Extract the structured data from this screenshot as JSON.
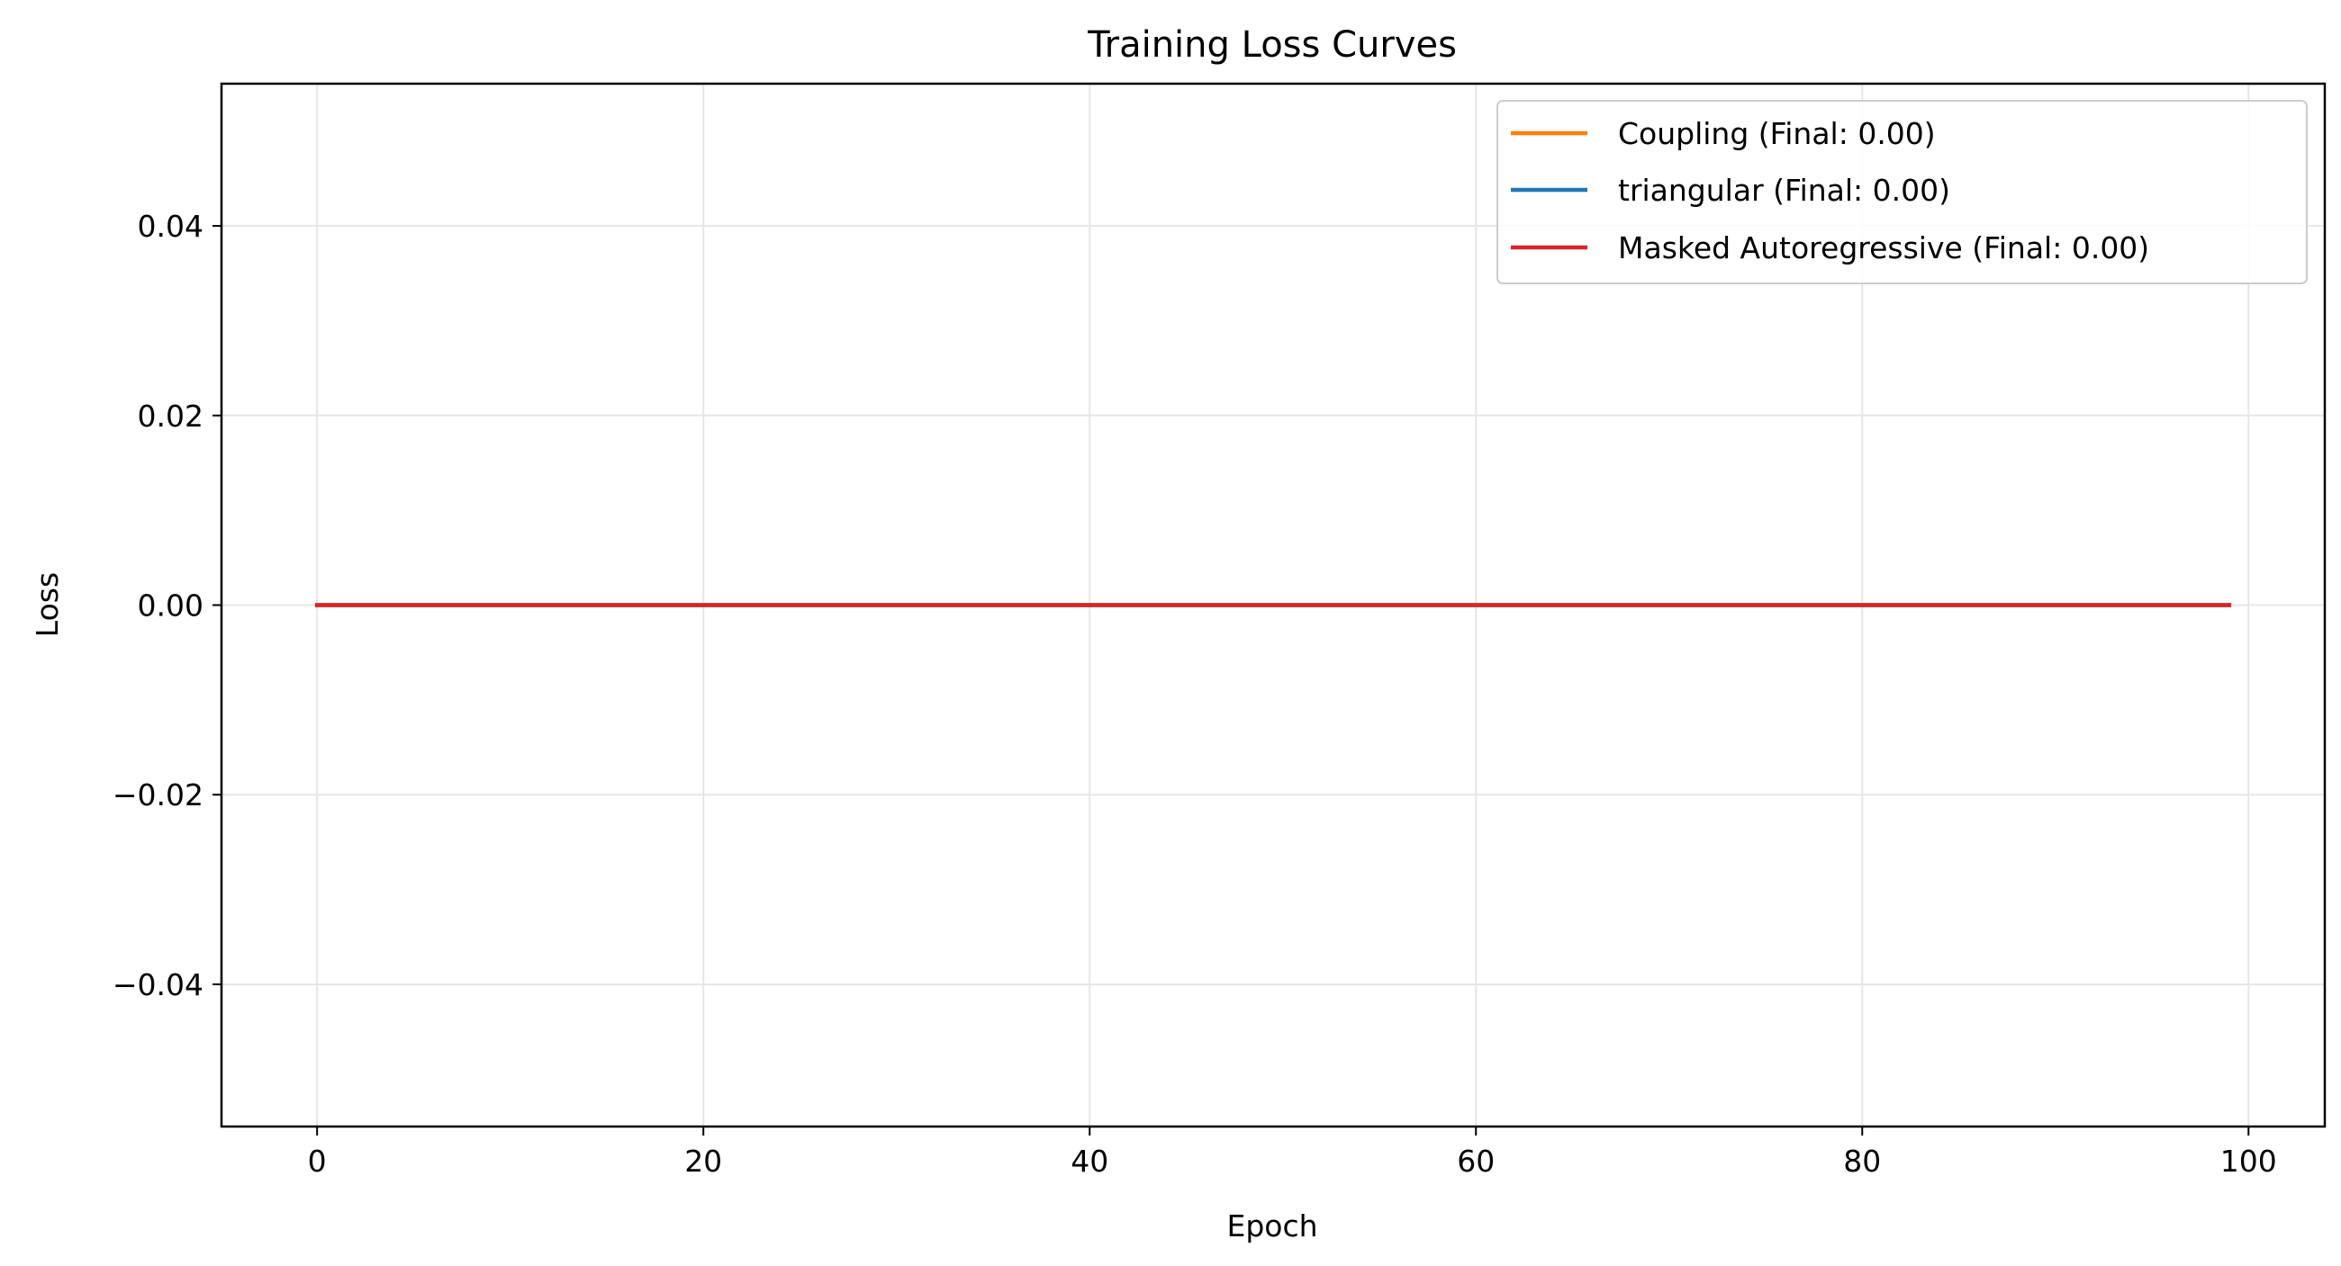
{
  "chart_data": {
    "type": "line",
    "title": "Training Loss Curves",
    "xlabel": "Epoch",
    "ylabel": "Loss",
    "xlim": [
      -4.95,
      103.95
    ],
    "ylim": [
      -0.055,
      0.055
    ],
    "x_ticks": [
      0,
      20,
      40,
      60,
      80,
      100
    ],
    "x_tick_labels": [
      "0",
      "20",
      "40",
      "60",
      "80",
      "100"
    ],
    "y_ticks": [
      -0.04,
      -0.02,
      0.0,
      0.02,
      0.04
    ],
    "y_tick_labels": [
      "−0.04",
      "−0.02",
      "0.00",
      "0.02",
      "0.04"
    ],
    "grid": true,
    "legend_position": "upper right",
    "series": [
      {
        "name": "Coupling (Final: 0.00)",
        "color": "#ff7f0e",
        "x_range": [
          0,
          99
        ],
        "values": [
          0.0,
          0.0
        ]
      },
      {
        "name": "triangular (Final: 0.00)",
        "color": "#1f77b4",
        "x_range": [
          0,
          99
        ],
        "values": [
          0.0,
          0.0
        ]
      },
      {
        "name": "Masked Autoregressive (Final: 0.00)",
        "color": "#d62728",
        "x_range": [
          0,
          99
        ],
        "values": [
          0.0,
          0.0
        ]
      }
    ]
  }
}
